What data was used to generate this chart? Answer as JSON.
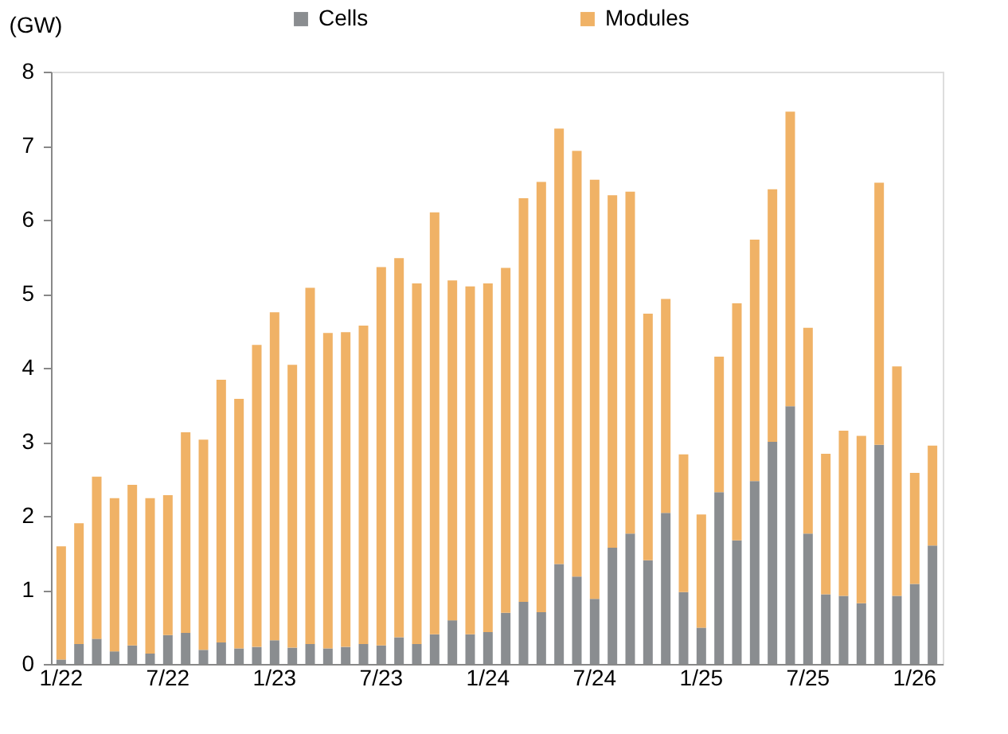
{
  "chart_data": {
    "type": "bar",
    "stacked": true,
    "ylabel": "(GW)",
    "categories": [
      "1/22",
      null,
      null,
      null,
      null,
      null,
      "7/22",
      null,
      null,
      null,
      null,
      null,
      "1/23",
      null,
      null,
      null,
      null,
      null,
      "7/23",
      null,
      null,
      null,
      null,
      null,
      "1/24",
      null,
      null,
      null,
      null,
      null,
      "7/24",
      null,
      null,
      null,
      null,
      null,
      "1/25",
      null,
      null,
      null,
      null,
      null,
      "7/25",
      null,
      null,
      null,
      null,
      null,
      "1/26",
      null
    ],
    "series": [
      {
        "name": "Cells",
        "color": "#8a8d90",
        "values": [
          0.06,
          0.27,
          0.34,
          0.17,
          0.25,
          0.14,
          0.39,
          0.42,
          0.19,
          0.29,
          0.21,
          0.23,
          0.32,
          0.22,
          0.27,
          0.21,
          0.23,
          0.27,
          0.25,
          0.36,
          0.27,
          0.4,
          0.59,
          0.4,
          0.43,
          0.69,
          0.84,
          0.7,
          1.35,
          1.18,
          0.88,
          1.57,
          1.76,
          1.4,
          2.04,
          0.97,
          0.49,
          2.32,
          1.67,
          2.47,
          3.0,
          3.48,
          1.76,
          0.94,
          0.92,
          0.82,
          2.96,
          0.92,
          1.08,
          1.6
        ]
      },
      {
        "name": "Modules",
        "color": "#f0b266",
        "values": [
          1.53,
          1.63,
          2.19,
          2.07,
          2.17,
          2.1,
          1.89,
          2.71,
          2.84,
          3.55,
          3.37,
          4.08,
          4.43,
          3.82,
          4.81,
          4.26,
          4.25,
          4.3,
          5.11,
          5.12,
          4.87,
          5.7,
          4.59,
          4.7,
          4.71,
          4.66,
          5.45,
          5.81,
          5.88,
          5.75,
          5.66,
          4.76,
          4.62,
          3.33,
          2.89,
          1.86,
          1.53,
          1.83,
          3.2,
          3.26,
          3.41,
          3.98,
          2.78,
          1.9,
          2.23,
          2.26,
          3.54,
          3.1,
          1.5,
          1.35
        ]
      }
    ],
    "ylim": [
      0,
      8
    ],
    "yticks": [
      0,
      1,
      2,
      3,
      4,
      5,
      6,
      7,
      8
    ],
    "grid": false,
    "legend": "top"
  }
}
